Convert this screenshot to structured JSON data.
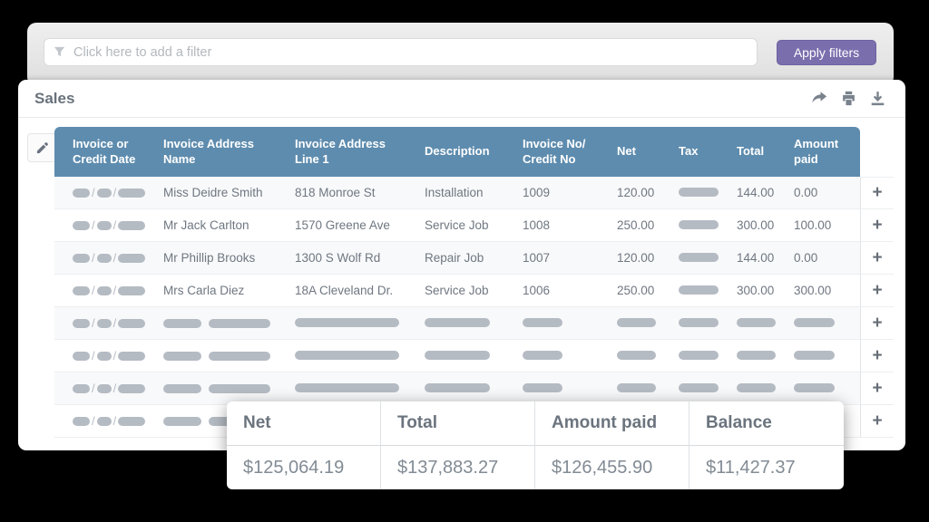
{
  "filter_bar": {
    "placeholder": "Click here to add a filter",
    "apply_label": "Apply filters"
  },
  "panel": {
    "title": "Sales",
    "icons": [
      "share-icon",
      "print-icon",
      "download-icon"
    ]
  },
  "table": {
    "columns": [
      "Invoice or Credit Date",
      "Invoice Address Name",
      "Invoice Address Line 1",
      "Description",
      "Invoice No/ Credit No",
      "Net",
      "Tax",
      "Total",
      "Amount paid"
    ],
    "rows": [
      {
        "date": null,
        "name": "Miss Deidre Smith",
        "address_line1": "818 Monroe St",
        "description": "Installation",
        "invoice_no": "1009",
        "net": "120.00",
        "tax": null,
        "total": "144.00",
        "amount_paid": "0.00"
      },
      {
        "date": null,
        "name": "Mr Jack Carlton",
        "address_line1": "1570 Greene Ave",
        "description": "Service Job",
        "invoice_no": "1008",
        "net": "250.00",
        "tax": null,
        "total": "300.00",
        "amount_paid": "100.00"
      },
      {
        "date": null,
        "name": "Mr Phillip Brooks",
        "address_line1": "1300 S Wolf Rd",
        "description": "Repair Job",
        "invoice_no": "1007",
        "net": "120.00",
        "tax": null,
        "total": "144.00",
        "amount_paid": "0.00"
      },
      {
        "date": null,
        "name": "Mrs Carla Diez",
        "address_line1": "18A Cleveland Dr.",
        "description": "Service Job",
        "invoice_no": "1006",
        "net": "250.00",
        "tax": null,
        "total": "300.00",
        "amount_paid": "300.00"
      },
      {
        "date": null,
        "name": null,
        "address_line1": null,
        "description": null,
        "invoice_no": null,
        "net": null,
        "tax": null,
        "total": null,
        "amount_paid": null
      },
      {
        "date": null,
        "name": null,
        "address_line1": null,
        "description": null,
        "invoice_no": null,
        "net": null,
        "tax": null,
        "total": null,
        "amount_paid": null
      },
      {
        "date": null,
        "name": null,
        "address_line1": null,
        "description": null,
        "invoice_no": null,
        "net": null,
        "tax": null,
        "total": null,
        "amount_paid": null
      },
      {
        "date": null,
        "name": null,
        "address_line1": null,
        "description": null,
        "invoice_no": null,
        "net": null,
        "tax": null,
        "total": null,
        "amount_paid": null
      }
    ],
    "row_action_label": "+"
  },
  "summary": {
    "columns": [
      {
        "label": "Net",
        "value": "$125,064.19"
      },
      {
        "label": "Total",
        "value": "$137,883.27"
      },
      {
        "label": "Amount paid",
        "value": "$126,455.90"
      },
      {
        "label": "Balance",
        "value": "$11,427.37"
      }
    ]
  },
  "colors": {
    "header_blue": "#5e8cae",
    "button_purple": "#7a6ead",
    "pill_grey": "#b5bbc3",
    "background": "#000000"
  }
}
